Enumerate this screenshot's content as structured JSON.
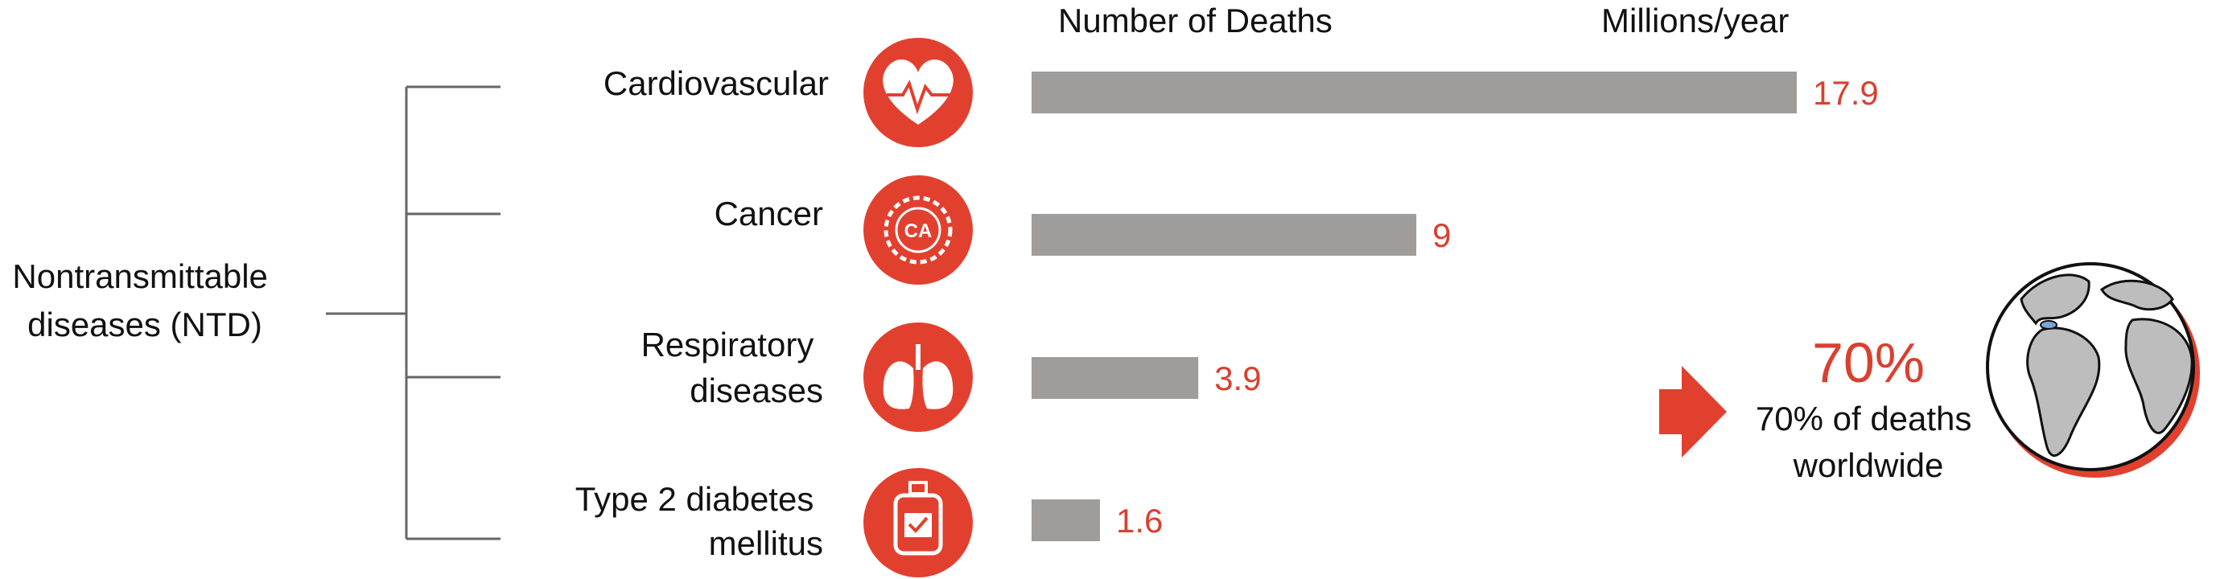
{
  "chart_data": {
    "type": "bar",
    "orientation": "horizontal",
    "group_label": "Nontransmittable diseases (NTD)",
    "header_left": "Number of Deaths",
    "header_right": "Millions/year",
    "categories": [
      "Cardiovascular",
      "Cancer",
      "Respiratory diseases",
      "Type 2 diabetes mellitus"
    ],
    "values": [
      17.9,
      9,
      3.9,
      1.6
    ],
    "value_labels": [
      "17.9",
      "9",
      "3.9",
      "1.6"
    ],
    "icons": [
      "heart-pulse-icon",
      "cancer-ca-icon",
      "lungs-icon",
      "insulin-bottle-icon"
    ],
    "xlim": [
      0,
      17.9
    ],
    "callout": {
      "percent": "70%",
      "text": "70% of deaths worldwide",
      "arrow_icon": "right-arrow-icon",
      "globe_icon": "globe-icon"
    },
    "colors": {
      "bar": "#9e9d9b",
      "accent": "#e2402f",
      "text": "#111111",
      "bracket": "#666666"
    }
  }
}
